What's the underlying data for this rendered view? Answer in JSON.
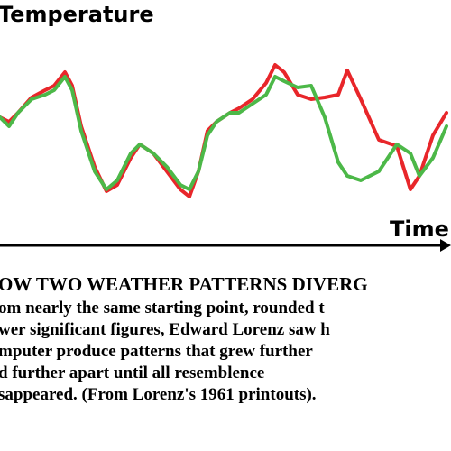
{
  "chart_data": {
    "type": "line",
    "title": "Temperature",
    "x_label": "Time",
    "caption": "OW TWO WEATHER PATTERNS DIVERG",
    "description": [
      "om nearly the same starting point, rounded t",
      "wer significant figures, Edward Lorenz saw h",
      "mputer produce patterns that grew further",
      "d further apart until all resemblence",
      "sappeared. (From Lorenz's 1961 printouts)."
    ],
    "x": [
      0,
      10,
      20,
      35,
      50,
      60,
      72,
      80,
      90,
      105,
      118,
      130,
      145,
      155,
      170,
      185,
      200,
      210,
      220,
      230,
      240,
      255,
      265,
      280,
      295,
      305,
      315,
      330,
      345,
      360,
      375,
      385,
      400,
      420,
      440,
      455,
      465,
      480,
      495
    ],
    "xlim": [
      0,
      500
    ],
    "ylim": [
      0,
      100
    ],
    "series": [
      {
        "color": "#e8262a",
        "values": [
          71,
          68.5,
          73.5,
          82,
          86,
          88.5,
          96,
          88.5,
          66,
          43.5,
          30,
          33.5,
          48.5,
          56,
          51,
          41,
          31,
          27,
          41,
          63.5,
          68.5,
          73.5,
          76,
          81,
          90,
          100,
          96,
          83.5,
          81,
          82,
          83.5,
          97,
          81,
          58.5,
          55,
          31,
          38.5,
          61,
          73.5
        ]
      },
      {
        "color": "#4cb848",
        "values": [
          71,
          66,
          73.5,
          81,
          83.5,
          86,
          93.5,
          86,
          63.5,
          41,
          31,
          36,
          51,
          56,
          51,
          43.5,
          33.5,
          31,
          41,
          61,
          68.5,
          73.5,
          73.5,
          78.5,
          83.5,
          93.5,
          91,
          87.5,
          88.5,
          71,
          46,
          38.5,
          36,
          41,
          56,
          51,
          38.5,
          48.5,
          66
        ]
      }
    ]
  }
}
